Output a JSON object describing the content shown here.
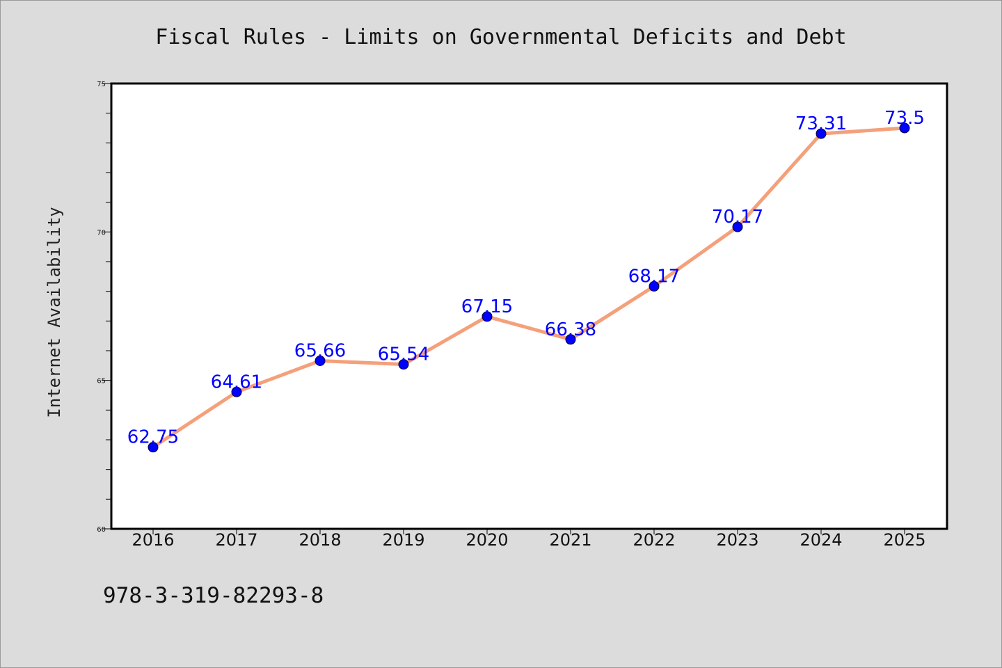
{
  "colors": {
    "background": "#dcdcdc",
    "plot_background": "#ffffff",
    "line": "#f4a07a",
    "marker": "#0000ff",
    "data_label": "#0000ff"
  },
  "footer": {
    "text": "978-3-319-82293-8"
  },
  "chart_data": {
    "type": "line",
    "title": "Fiscal Rules - Limits on Governmental Deficits and Debt",
    "xlabel": "",
    "ylabel": "Internet Availability",
    "categories": [
      "2016",
      "2017",
      "2018",
      "2019",
      "2020",
      "2021",
      "2022",
      "2023",
      "2024",
      "2025"
    ],
    "series": [
      {
        "values": [
          62.75,
          64.61,
          65.66,
          65.54,
          67.15,
          66.38,
          68.17,
          70.17,
          73.31,
          73.5
        ],
        "labels": [
          "62.75",
          "64.61",
          "65.66",
          "65.54",
          "67.15",
          "66.38",
          "68.17",
          "70.17",
          "73.31",
          "73.5"
        ]
      }
    ],
    "ylim": [
      60,
      75
    ],
    "yticks": [
      "60",
      "65",
      "70",
      "75"
    ],
    "grid": false,
    "legend": "none",
    "marker": "circle"
  }
}
